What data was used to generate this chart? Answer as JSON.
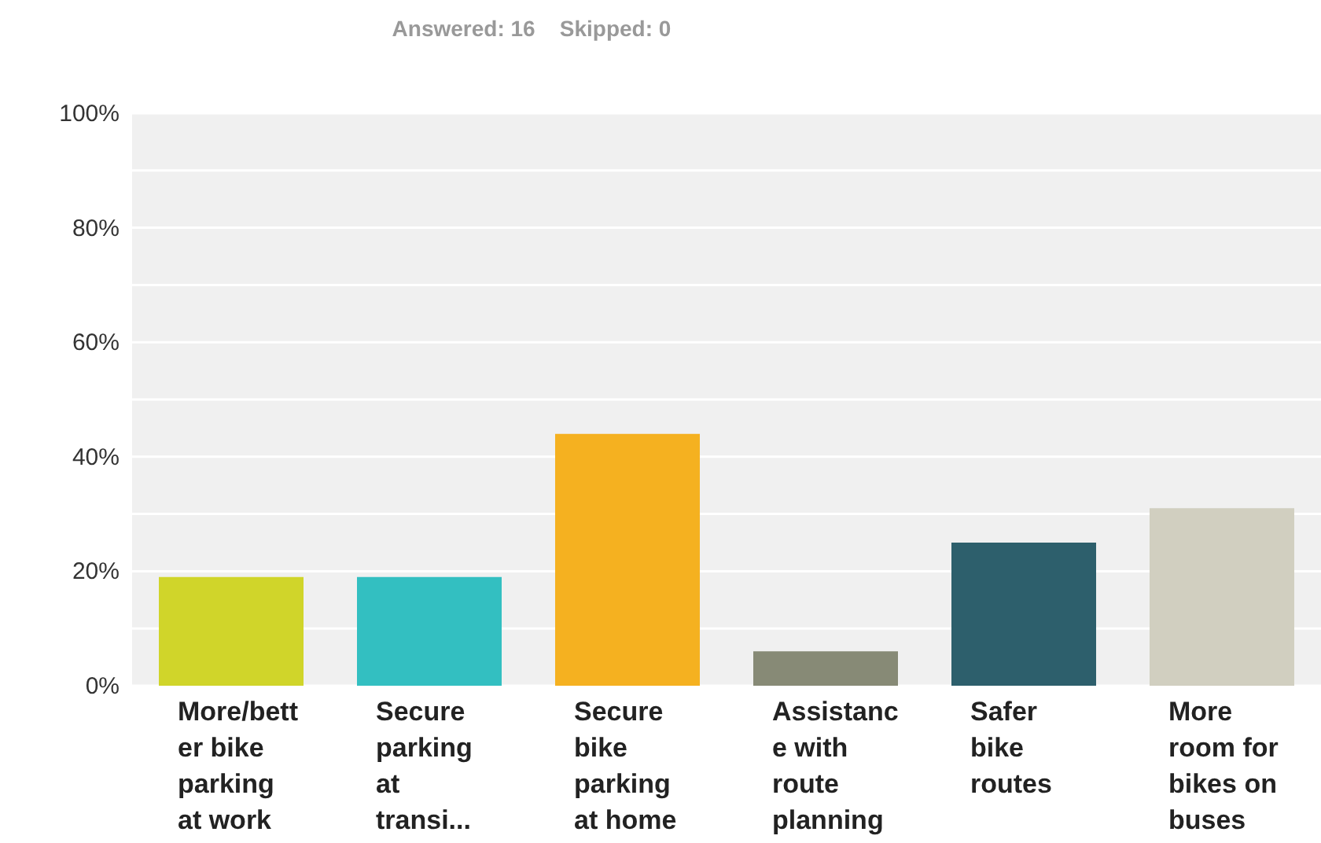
{
  "chart_data": {
    "type": "bar",
    "title": "Answered: 16    Skipped: 0",
    "categories": [
      "More/better bike parking at work",
      "Secure parking at transi...",
      "Secure bike parking at home",
      "Assistance with route planning",
      "Safer bike routes",
      "More room for bikes on buses"
    ],
    "values": [
      19,
      19,
      44,
      6,
      25,
      31
    ],
    "colors": [
      "#d0d52a",
      "#33bfc1",
      "#f5b120",
      "#878a76",
      "#2d5f6c",
      "#d1cfc0"
    ],
    "ylim": [
      0,
      100
    ],
    "yticks": [
      {
        "value": 0,
        "label": "0%"
      },
      {
        "value": 10,
        "label": null
      },
      {
        "value": 20,
        "label": "20%"
      },
      {
        "value": 30,
        "label": null
      },
      {
        "value": 40,
        "label": "40%"
      },
      {
        "value": 50,
        "label": null
      },
      {
        "value": 60,
        "label": "60%"
      },
      {
        "value": 70,
        "label": null
      },
      {
        "value": 80,
        "label": "80%"
      },
      {
        "value": 90,
        "label": null
      },
      {
        "value": 100,
        "label": "100%"
      }
    ],
    "grid": "y"
  }
}
